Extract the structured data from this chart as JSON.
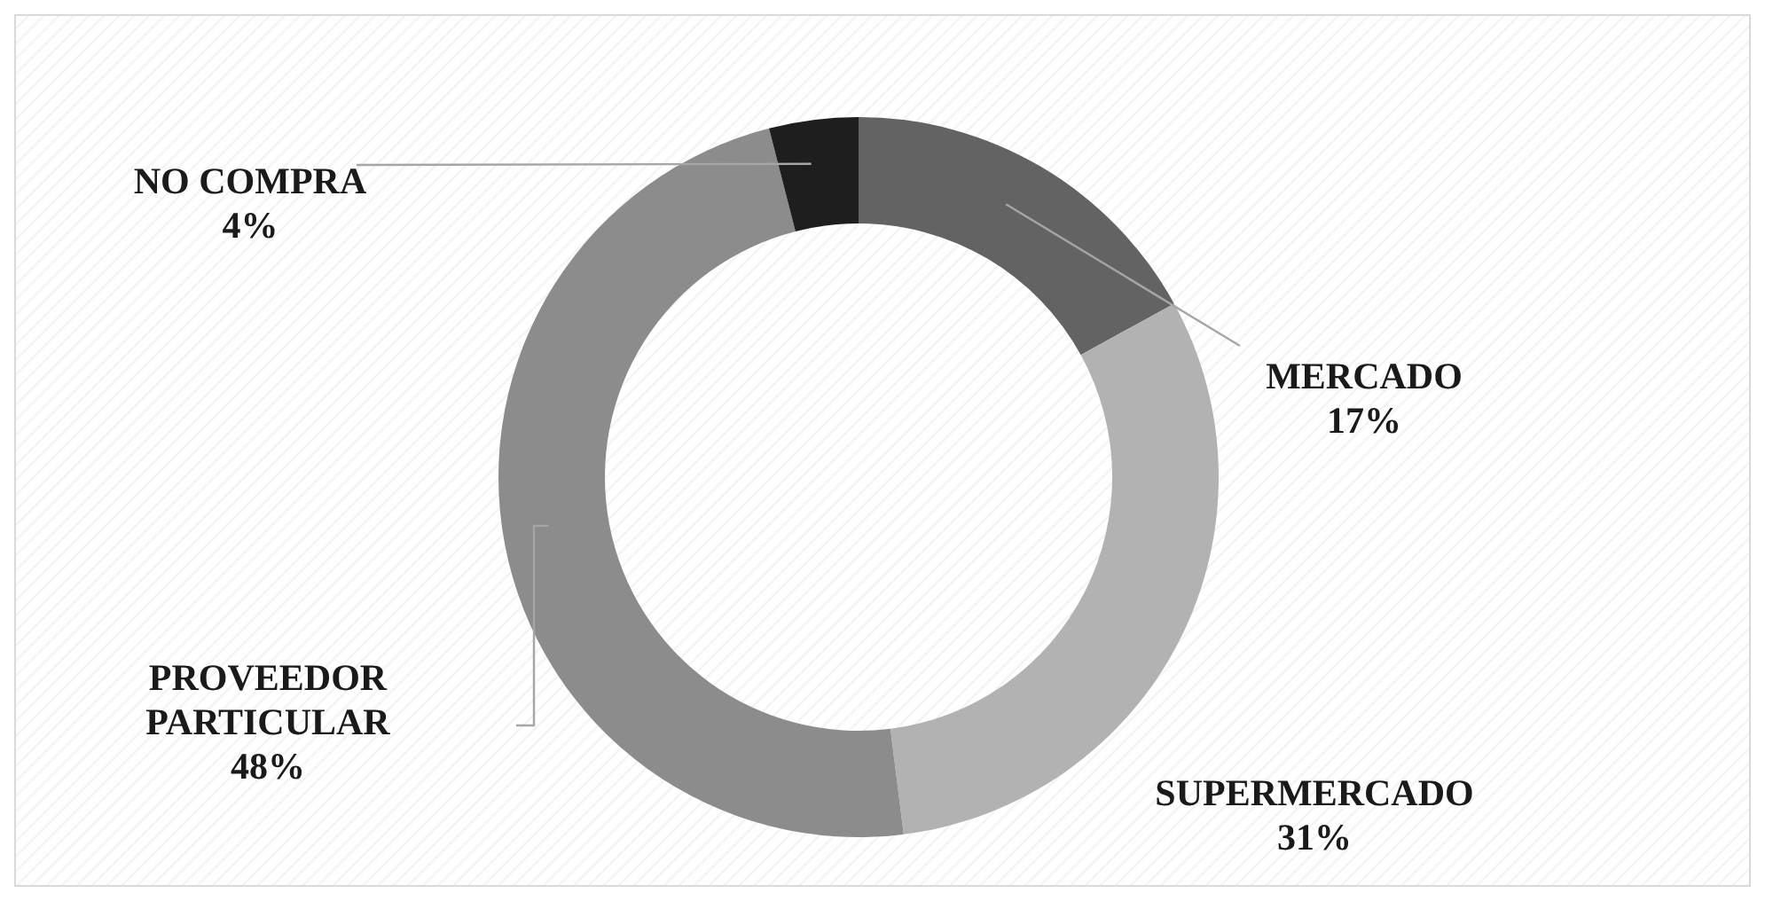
{
  "chart_data": {
    "type": "donut",
    "categories": [
      "MERCADO",
      "SUPERMERCADO",
      "PROVEEDOR PARTICULAR",
      "NO COMPRA"
    ],
    "values": [
      17,
      31,
      48,
      4
    ],
    "colors": [
      "#636363",
      "#b2b2b2",
      "#8c8c8c",
      "#1e1e1e"
    ],
    "value_labels": [
      "17%",
      "31%",
      "48%",
      "4%"
    ],
    "legend": false
  }
}
